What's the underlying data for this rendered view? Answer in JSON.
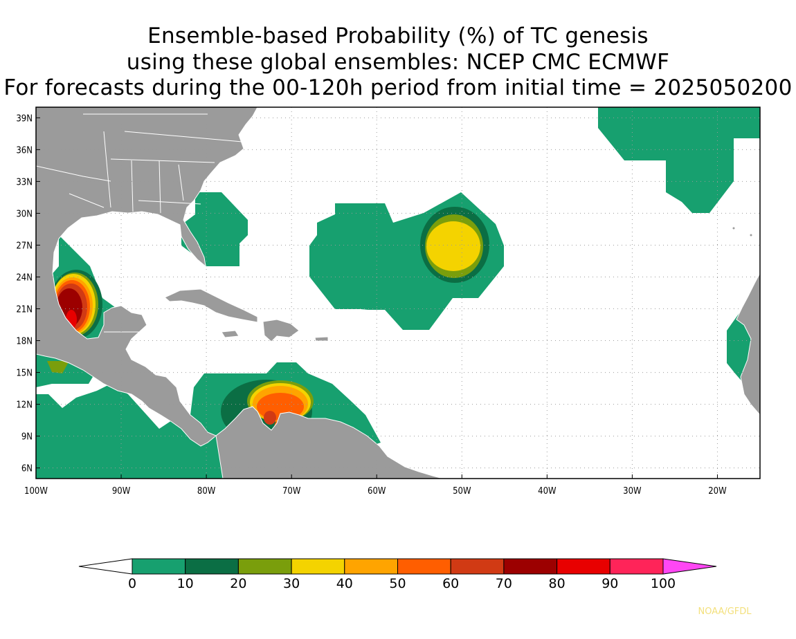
{
  "title": {
    "line1": "Ensemble-based Probability (%) of TC genesis",
    "line2": "using these global ensembles:   NCEP CMC ECMWF",
    "line3": "For forecasts during the 00-120h period from initial time = 2025050200"
  },
  "map": {
    "lon_range": [
      -100,
      -15
    ],
    "lat_range": [
      5,
      40
    ],
    "lat_labels": [
      "39N",
      "36N",
      "33N",
      "30N",
      "27N",
      "24N",
      "21N",
      "18N",
      "15N",
      "12N",
      "9N",
      "6N"
    ],
    "lat_values": [
      39,
      36,
      33,
      30,
      27,
      24,
      21,
      18,
      15,
      12,
      9,
      6
    ],
    "lon_labels": [
      "100W",
      "90W",
      "80W",
      "70W",
      "60W",
      "50W",
      "40W",
      "30W",
      "20W"
    ],
    "lon_values": [
      -100,
      -90,
      -80,
      -70,
      -60,
      -50,
      -40,
      -30,
      -20
    ],
    "land_color": "#9b9b9b",
    "ocean_color": "#ffffff"
  },
  "colorbar": {
    "labels": [
      "0",
      "10",
      "20",
      "30",
      "40",
      "50",
      "60",
      "70",
      "80",
      "90",
      "100"
    ],
    "colors": [
      "#17a06f",
      "#0b6e44",
      "#7a9e0c",
      "#f4d300",
      "#ffa400",
      "#ff5e00",
      "#d13a14",
      "#9c0000",
      "#e80000",
      "#ff2459"
    ],
    "under_color": "#ffffff",
    "over_color": "#ff47f4"
  },
  "credit": "NOAA/GFDL"
}
